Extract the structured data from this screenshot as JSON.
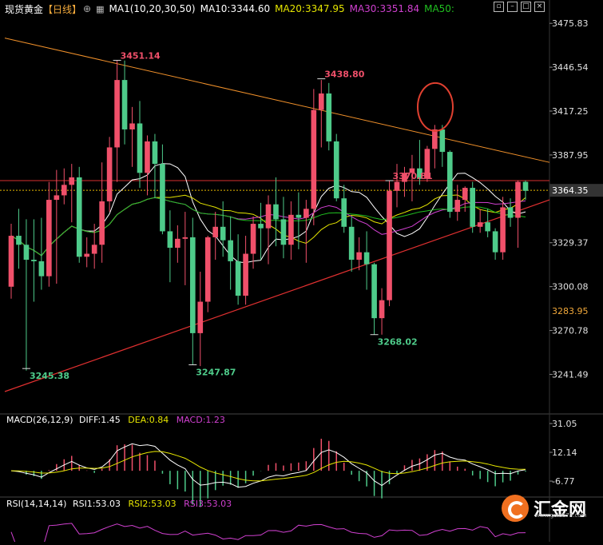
{
  "header": {
    "title": "现货黄金",
    "period": "【日线】",
    "ma_label": "MA1(10,20,30,50)",
    "ma10": "MA10:3344.60",
    "ma20": "MA20:3347.95",
    "ma30": "MA30:3351.84",
    "ma50": "MA50:",
    "colors": {
      "ma10": "#ffffff",
      "ma20": "#e6e600",
      "ma30": "#d040d0",
      "ma50": "#20c020"
    }
  },
  "toolbar": {
    "icons": [
      "restore-icon",
      "minimize-icon",
      "maximize-icon",
      "close-icon"
    ]
  },
  "macd": {
    "label": "MACD(26,12,9)",
    "diff": "DIFF:1.45",
    "dea": "DEA:0.84",
    "macd": "MACD:1.23"
  },
  "rsi": {
    "label": "RSI(14,14,14)",
    "rsi1": "RSI1:53.03",
    "rsi2": "RSI2:53.03",
    "rsi3": "RSI3:53.03"
  },
  "logo": {
    "text": "汇金网",
    "url": "www.gold678.com"
  },
  "chart_data": {
    "type": "candlestick",
    "up_color": "#f0506a",
    "down_color": "#4ecb8a",
    "price_axis": {
      "ylim": [
        3230,
        3485
      ],
      "ticks": [
        "3475.83",
        "3446.54",
        "3417.25",
        "3387.95",
        "3329.37",
        "3300.08",
        "3270.78",
        "3241.49"
      ],
      "current_price": "3364.35",
      "marked_level": "3283.95"
    },
    "annotations": [
      {
        "text": "3451.14",
        "price": 3451.14,
        "kind": "high"
      },
      {
        "text": "3438.80",
        "price": 3438.8,
        "kind": "high"
      },
      {
        "text": "3370.81",
        "price": 3370.81,
        "kind": "high"
      },
      {
        "text": "3245.38",
        "price": 3245.38,
        "kind": "low"
      },
      {
        "text": "3247.87",
        "price": 3247.87,
        "kind": "low"
      },
      {
        "text": "3268.02",
        "price": 3268.02,
        "kind": "low"
      }
    ],
    "candles": [
      {
        "o": 3300,
        "h": 3342,
        "l": 3292,
        "c": 3334
      },
      {
        "o": 3334,
        "h": 3352,
        "l": 3312,
        "c": 3328
      },
      {
        "o": 3328,
        "h": 3345,
        "l": 3244,
        "c": 3318
      },
      {
        "o": 3318,
        "h": 3345,
        "l": 3290,
        "c": 3317
      },
      {
        "o": 3317,
        "h": 3346,
        "l": 3298,
        "c": 3307
      },
      {
        "o": 3307,
        "h": 3370,
        "l": 3300,
        "c": 3358
      },
      {
        "o": 3358,
        "h": 3378,
        "l": 3302,
        "c": 3361
      },
      {
        "o": 3361,
        "h": 3379,
        "l": 3355,
        "c": 3368
      },
      {
        "o": 3368,
        "h": 3382,
        "l": 3343,
        "c": 3373
      },
      {
        "o": 3373,
        "h": 3380,
        "l": 3316,
        "c": 3320
      },
      {
        "o": 3320,
        "h": 3333,
        "l": 3313,
        "c": 3322
      },
      {
        "o": 3322,
        "h": 3342,
        "l": 3312,
        "c": 3328
      },
      {
        "o": 3328,
        "h": 3383,
        "l": 3316,
        "c": 3357
      },
      {
        "o": 3357,
        "h": 3400,
        "l": 3350,
        "c": 3393
      },
      {
        "o": 3393,
        "h": 3451,
        "l": 3370,
        "c": 3438
      },
      {
        "o": 3438,
        "h": 3451,
        "l": 3395,
        "c": 3405
      },
      {
        "o": 3405,
        "h": 3420,
        "l": 3380,
        "c": 3409
      },
      {
        "o": 3409,
        "h": 3424,
        "l": 3366,
        "c": 3376
      },
      {
        "o": 3376,
        "h": 3401,
        "l": 3361,
        "c": 3397
      },
      {
        "o": 3397,
        "h": 3402,
        "l": 3359,
        "c": 3382
      },
      {
        "o": 3382,
        "h": 3395,
        "l": 3335,
        "c": 3337
      },
      {
        "o": 3337,
        "h": 3351,
        "l": 3303,
        "c": 3326
      },
      {
        "o": 3326,
        "h": 3341,
        "l": 3316,
        "c": 3332
      },
      {
        "o": 3332,
        "h": 3350,
        "l": 3301,
        "c": 3333
      },
      {
        "o": 3333,
        "h": 3346,
        "l": 3248,
        "c": 3269
      },
      {
        "o": 3269,
        "h": 3310,
        "l": 3247,
        "c": 3290
      },
      {
        "o": 3290,
        "h": 3334,
        "l": 3283,
        "c": 3333
      },
      {
        "o": 3333,
        "h": 3350,
        "l": 3318,
        "c": 3340
      },
      {
        "o": 3340,
        "h": 3357,
        "l": 3320,
        "c": 3331
      },
      {
        "o": 3331,
        "h": 3347,
        "l": 3298,
        "c": 3317
      },
      {
        "o": 3317,
        "h": 3335,
        "l": 3288,
        "c": 3294
      },
      {
        "o": 3294,
        "h": 3334,
        "l": 3288,
        "c": 3322
      },
      {
        "o": 3322,
        "h": 3347,
        "l": 3312,
        "c": 3342
      },
      {
        "o": 3342,
        "h": 3356,
        "l": 3318,
        "c": 3339
      },
      {
        "o": 3339,
        "h": 3361,
        "l": 3315,
        "c": 3355
      },
      {
        "o": 3355,
        "h": 3373,
        "l": 3327,
        "c": 3345
      },
      {
        "o": 3345,
        "h": 3360,
        "l": 3319,
        "c": 3328
      },
      {
        "o": 3328,
        "h": 3357,
        "l": 3318,
        "c": 3348
      },
      {
        "o": 3348,
        "h": 3363,
        "l": 3325,
        "c": 3346
      },
      {
        "o": 3346,
        "h": 3358,
        "l": 3316,
        "c": 3352
      },
      {
        "o": 3352,
        "h": 3432,
        "l": 3341,
        "c": 3418
      },
      {
        "o": 3418,
        "h": 3438,
        "l": 3393,
        "c": 3429
      },
      {
        "o": 3429,
        "h": 3436,
        "l": 3391,
        "c": 3397
      },
      {
        "o": 3397,
        "h": 3402,
        "l": 3357,
        "c": 3359
      },
      {
        "o": 3359,
        "h": 3368,
        "l": 3336,
        "c": 3340
      },
      {
        "o": 3340,
        "h": 3347,
        "l": 3310,
        "c": 3318
      },
      {
        "o": 3318,
        "h": 3333,
        "l": 3311,
        "c": 3323
      },
      {
        "o": 3323,
        "h": 3337,
        "l": 3298,
        "c": 3315
      },
      {
        "o": 3315,
        "h": 3316,
        "l": 3268,
        "c": 3279
      },
      {
        "o": 3279,
        "h": 3299,
        "l": 3268,
        "c": 3291
      },
      {
        "o": 3291,
        "h": 3371,
        "l": 3287,
        "c": 3364
      },
      {
        "o": 3364,
        "h": 3382,
        "l": 3353,
        "c": 3370
      },
      {
        "o": 3370,
        "h": 3380,
        "l": 3360,
        "c": 3376
      },
      {
        "o": 3376,
        "h": 3388,
        "l": 3357,
        "c": 3379
      },
      {
        "o": 3379,
        "h": 3398,
        "l": 3368,
        "c": 3372
      },
      {
        "o": 3372,
        "h": 3394,
        "l": 3370,
        "c": 3392
      },
      {
        "o": 3392,
        "h": 3408,
        "l": 3379,
        "c": 3405
      },
      {
        "o": 3405,
        "h": 3408,
        "l": 3380,
        "c": 3390
      },
      {
        "o": 3390,
        "h": 3391,
        "l": 3346,
        "c": 3350
      },
      {
        "o": 3350,
        "h": 3368,
        "l": 3344,
        "c": 3358
      },
      {
        "o": 3358,
        "h": 3367,
        "l": 3350,
        "c": 3366
      },
      {
        "o": 3366,
        "h": 3370,
        "l": 3336,
        "c": 3340
      },
      {
        "o": 3340,
        "h": 3352,
        "l": 3336,
        "c": 3343
      },
      {
        "o": 3343,
        "h": 3352,
        "l": 3333,
        "c": 3337
      },
      {
        "o": 3337,
        "h": 3339,
        "l": 3318,
        "c": 3323
      },
      {
        "o": 3323,
        "h": 3360,
        "l": 3318,
        "c": 3353
      },
      {
        "o": 3353,
        "h": 3359,
        "l": 3340,
        "c": 3346
      },
      {
        "o": 3346,
        "h": 3371,
        "l": 3326,
        "c": 3370
      },
      {
        "o": 3370,
        "h": 3371,
        "l": 3358,
        "c": 3364
      }
    ]
  }
}
